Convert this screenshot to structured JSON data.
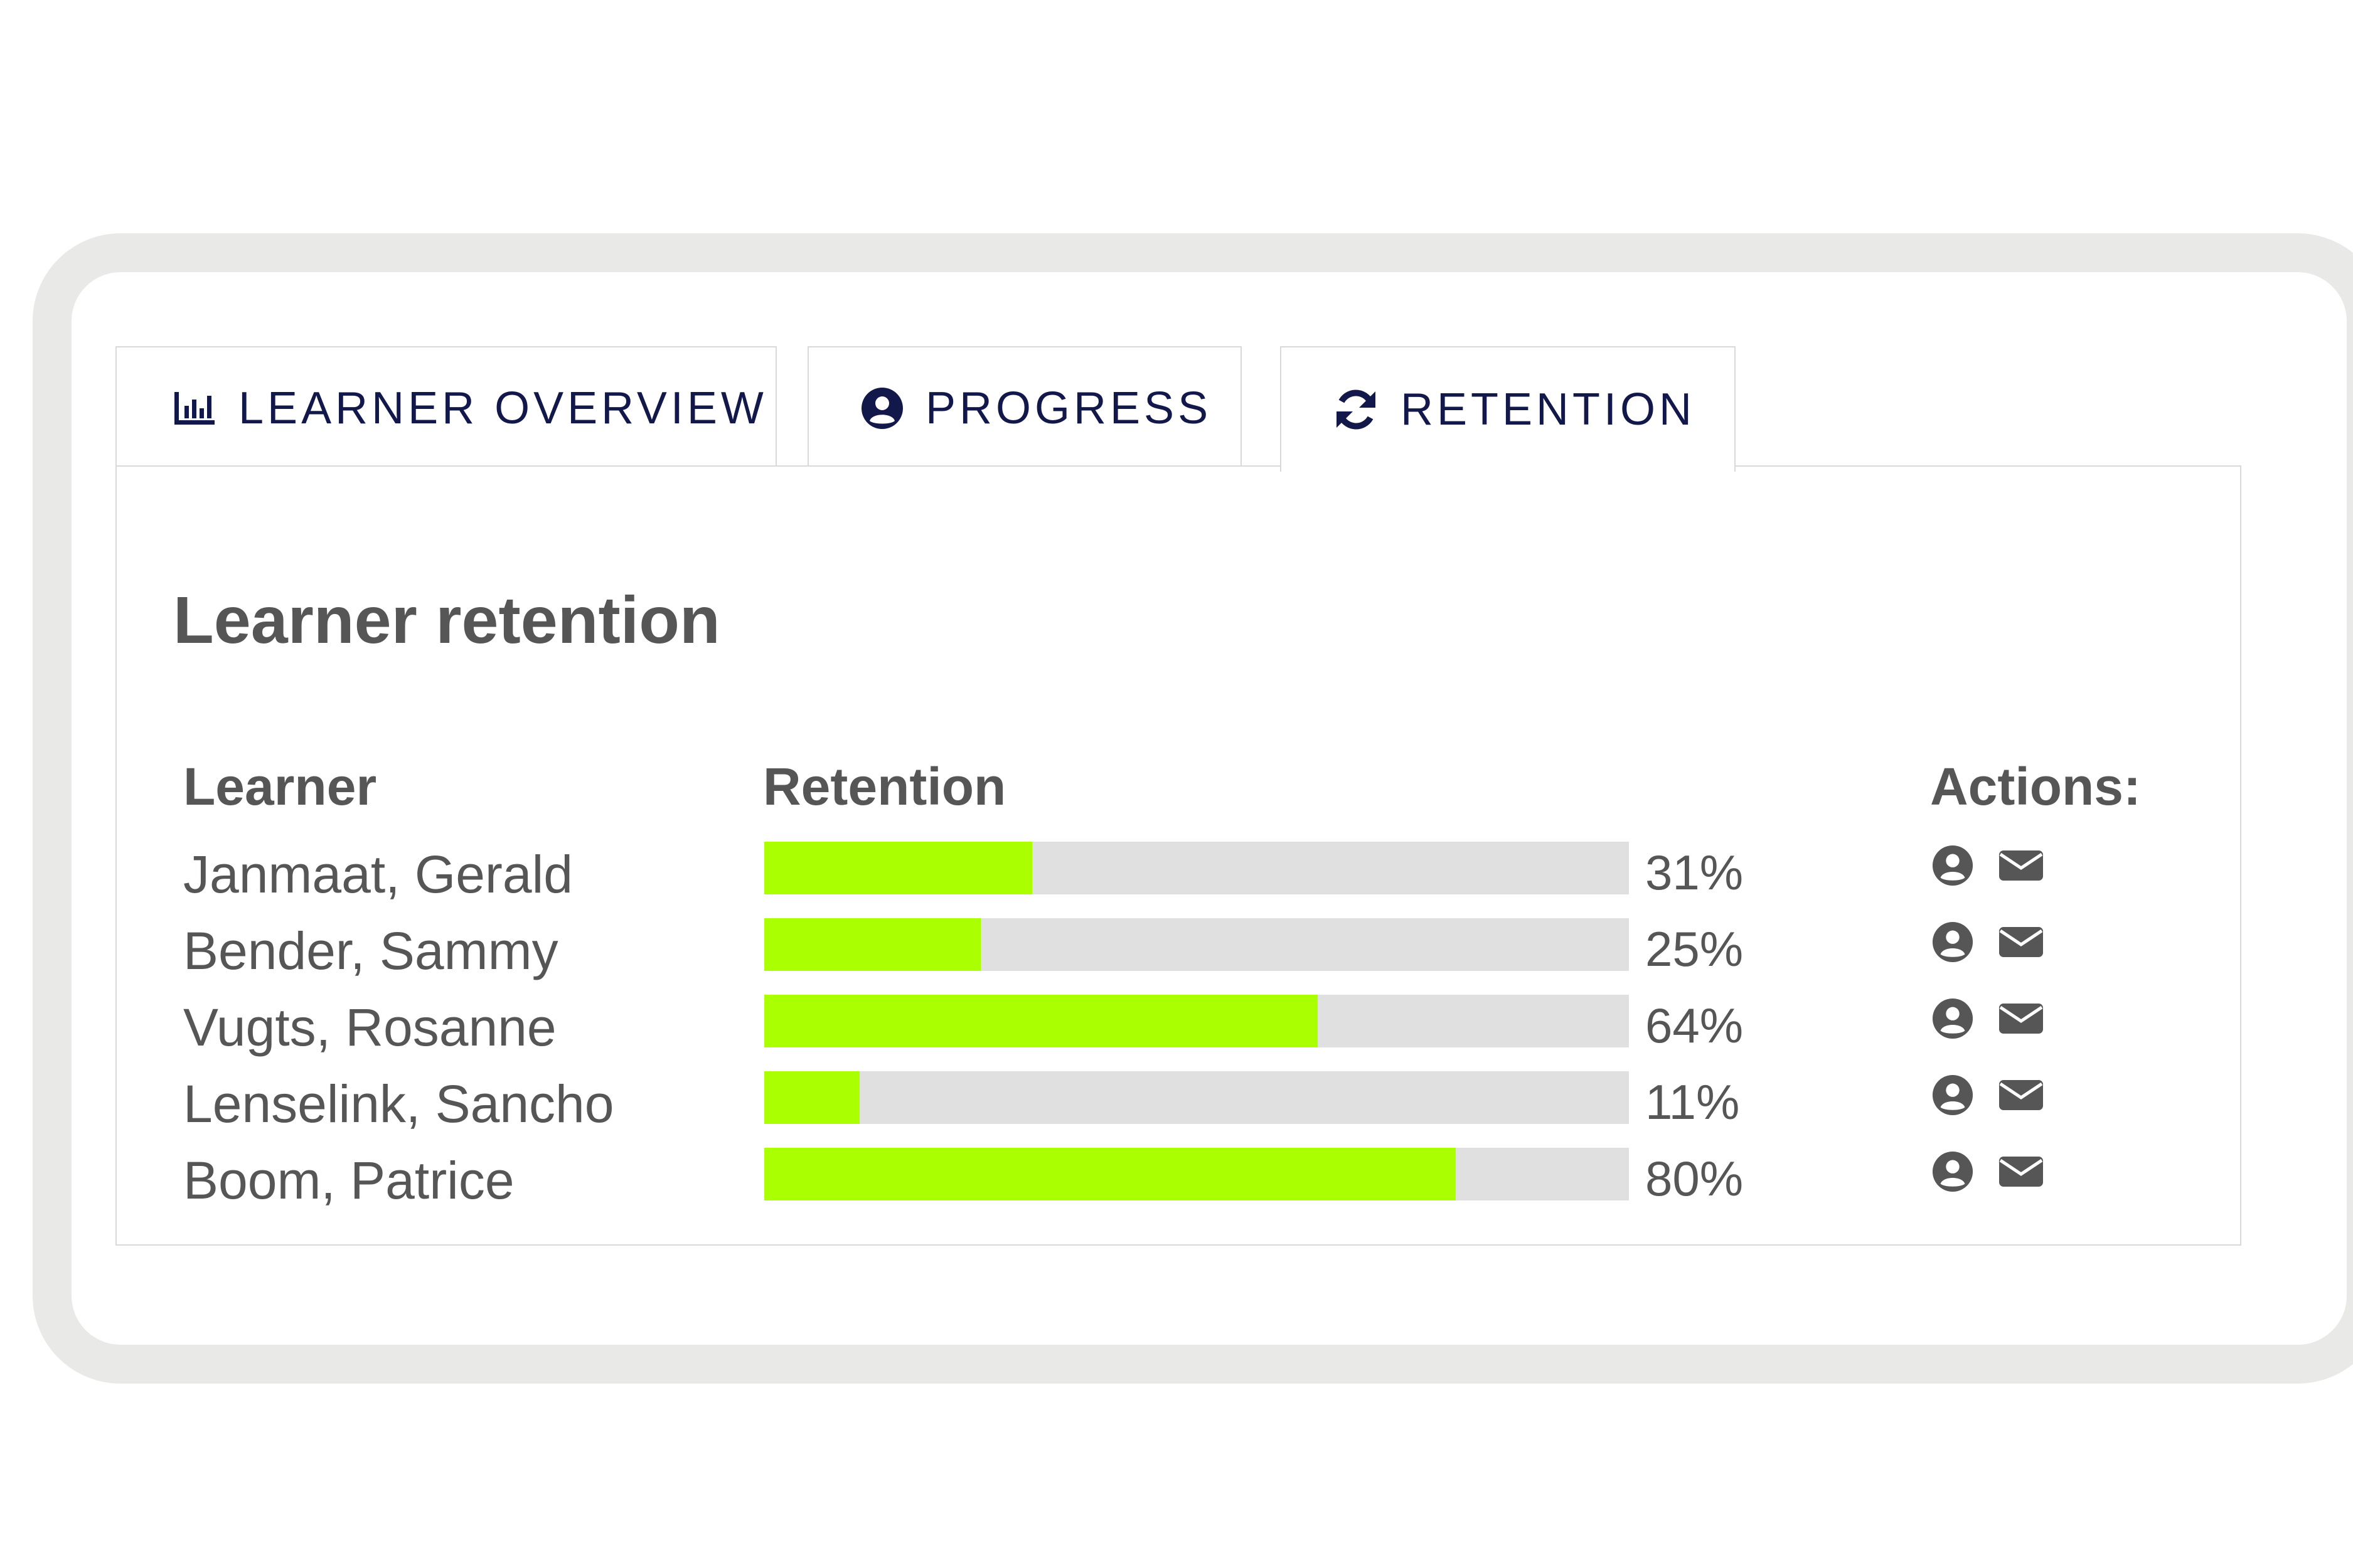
{
  "tabs": [
    {
      "label": "LEARNER OVERVIEW",
      "icon": "bar-chart-icon"
    },
    {
      "label": "PROGRESS",
      "icon": "user-circle-icon"
    },
    {
      "label": "RETENTION",
      "icon": "refresh-icon",
      "active": true
    }
  ],
  "panel": {
    "title": "Learner retention",
    "columns": {
      "learner": "Learner",
      "retention": "Retention",
      "actions": "Actions:"
    },
    "rows": [
      {
        "name": "Janmaat, Gerald",
        "retention": 31,
        "retention_label": "31%"
      },
      {
        "name": "Bender, Sammy",
        "retention": 25,
        "retention_label": "25%"
      },
      {
        "name": "Vugts, Rosanne",
        "retention": 64,
        "retention_label": "64%"
      },
      {
        "name": "Lenselink, Sancho",
        "retention": 11,
        "retention_label": "11%"
      },
      {
        "name": "Boom, Patrice",
        "retention": 80,
        "retention_label": "80%"
      }
    ],
    "row_actions": [
      {
        "icon": "user-circle-icon",
        "action": "profile"
      },
      {
        "icon": "envelope-icon",
        "action": "email"
      }
    ]
  },
  "colors": {
    "tab_text": "#12184a",
    "text": "#565656",
    "bar_fill": "#aaff00",
    "bar_track": "#e0e0e0",
    "frame": "#e9e9e7"
  }
}
